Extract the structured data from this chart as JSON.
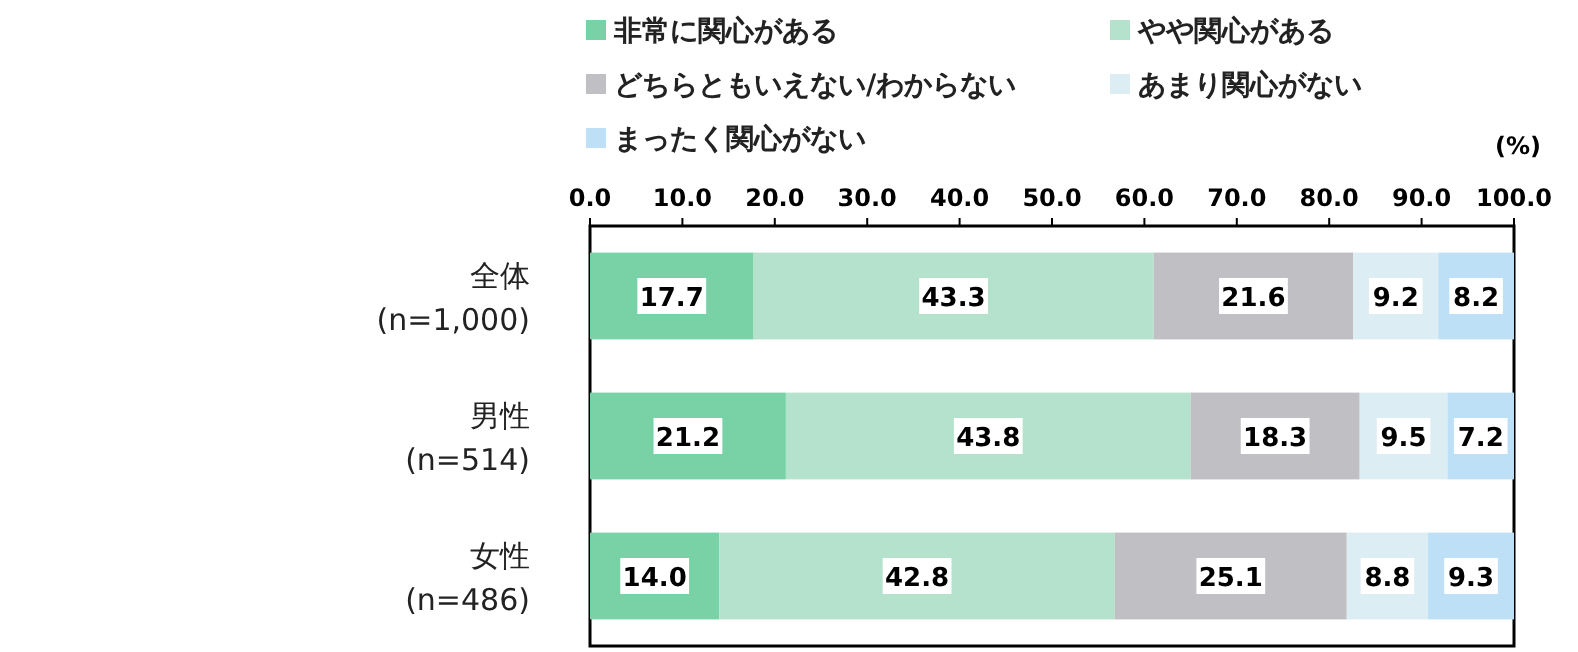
{
  "chart_data": {
    "type": "bar",
    "orientation": "horizontal",
    "stacked": true,
    "data_labels": true,
    "legend": "top",
    "grid": false,
    "xlabel": "(%)",
    "categories": [
      "全体\n(n=1,000)",
      "男性\n(n=514)",
      "女性\n(n=486)"
    ],
    "series": [
      {
        "name": "非常に関心がある",
        "color": "#79d2a6",
        "values": [
          17.7,
          21.2,
          14.0
        ],
        "value_labels": [
          "17.7",
          "21.2",
          "14.0"
        ]
      },
      {
        "name": "やや関心がある",
        "color": "#b4e2cc",
        "values": [
          43.3,
          43.8,
          42.8
        ]
      },
      {
        "name": "どちらともいえない/わからない",
        "color": "#bfbfc4",
        "values": [
          21.6,
          18.3,
          25.1
        ]
      },
      {
        "name": "あまり関心がない",
        "color": "#dcedf3",
        "values": [
          9.2,
          9.5,
          8.8
        ]
      },
      {
        "name": "まったく関心がない",
        "color": "#bde0f6",
        "values": [
          8.2,
          7.2,
          9.3
        ]
      }
    ],
    "xlim": [
      0,
      100
    ],
    "xticks": [
      {
        "value": 0,
        "label": "0.0"
      },
      {
        "value": 10,
        "label": "10.0"
      },
      {
        "value": 20,
        "label": "20.0"
      },
      {
        "value": 30,
        "label": "30.0"
      },
      {
        "value": 40,
        "label": "40.0"
      },
      {
        "value": 50,
        "label": "50.0"
      },
      {
        "value": 60,
        "label": "60.0"
      },
      {
        "value": 70,
        "label": "70.0"
      },
      {
        "value": 80,
        "label": "80.0"
      },
      {
        "value": 90,
        "label": "90.0"
      },
      {
        "value": 100,
        "label": "100.0"
      }
    ]
  }
}
